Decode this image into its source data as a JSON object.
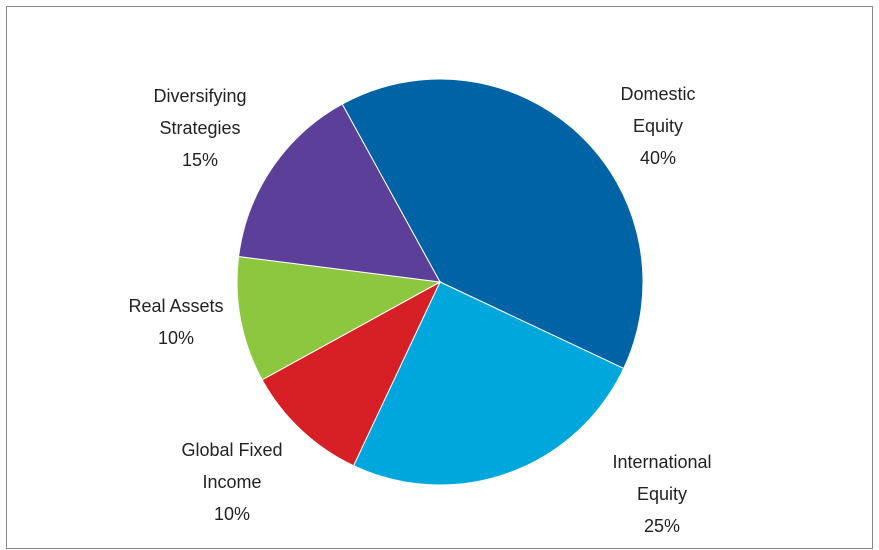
{
  "chart_data": {
    "type": "pie",
    "categories": [
      "Domestic Equity",
      "International Equity",
      "Global Fixed Income",
      "Real Assets",
      "Diversifying Strategies"
    ],
    "values": [
      40,
      25,
      10,
      10,
      15
    ],
    "value_labels": [
      "40%",
      "25%",
      "10%",
      "10%",
      "15%"
    ],
    "colors": [
      "#0063a6",
      "#00a7dc",
      "#d71f26",
      "#8dc63f",
      "#5b3f99"
    ]
  }
}
